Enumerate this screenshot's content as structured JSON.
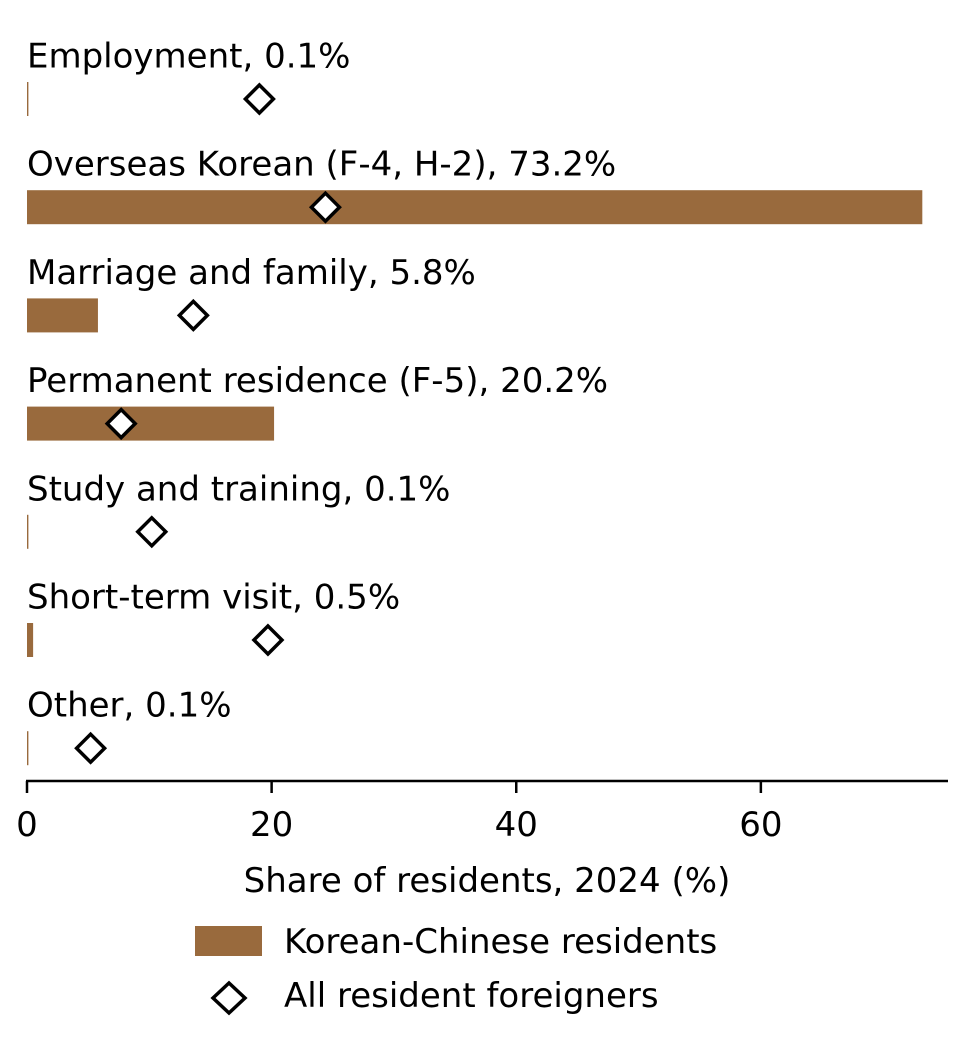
{
  "chart_data": {
    "type": "bar",
    "orientation": "horizontal",
    "categories": [
      "Employment",
      "Overseas Korean (F-4, H-2)",
      "Marriage and family",
      "Permanent residence (F-5)",
      "Study and training",
      "Short-term visit",
      "Other"
    ],
    "category_labels": [
      "Employment, 0.1%",
      "Overseas Korean (F-4, H-2), 73.2%",
      "Marriage and family, 5.8%",
      "Permanent residence (F-5), 20.2%",
      "Study and training, 0.1%",
      "Short-term visit, 0.5%",
      "Other, 0.1%"
    ],
    "series": [
      {
        "name": "Korean-Chinese residents",
        "kind": "bar",
        "color": "#996a3d",
        "values": [
          0.1,
          73.2,
          5.8,
          20.2,
          0.1,
          0.5,
          0.1
        ]
      },
      {
        "name": "All resident foreigners",
        "kind": "marker",
        "marker": "diamond",
        "color": "#000000",
        "values": [
          19.0,
          24.4,
          13.6,
          7.7,
          10.2,
          19.7,
          5.2
        ]
      }
    ],
    "xlabel": "Share of residents, 2024 (%)",
    "xticks": [
      0,
      20,
      40,
      60
    ],
    "xtick_labels": [
      "0",
      "20",
      "40",
      "60"
    ],
    "xlim": [
      0,
      75.3
    ],
    "grid": false,
    "legend_position": "bottom-center"
  }
}
